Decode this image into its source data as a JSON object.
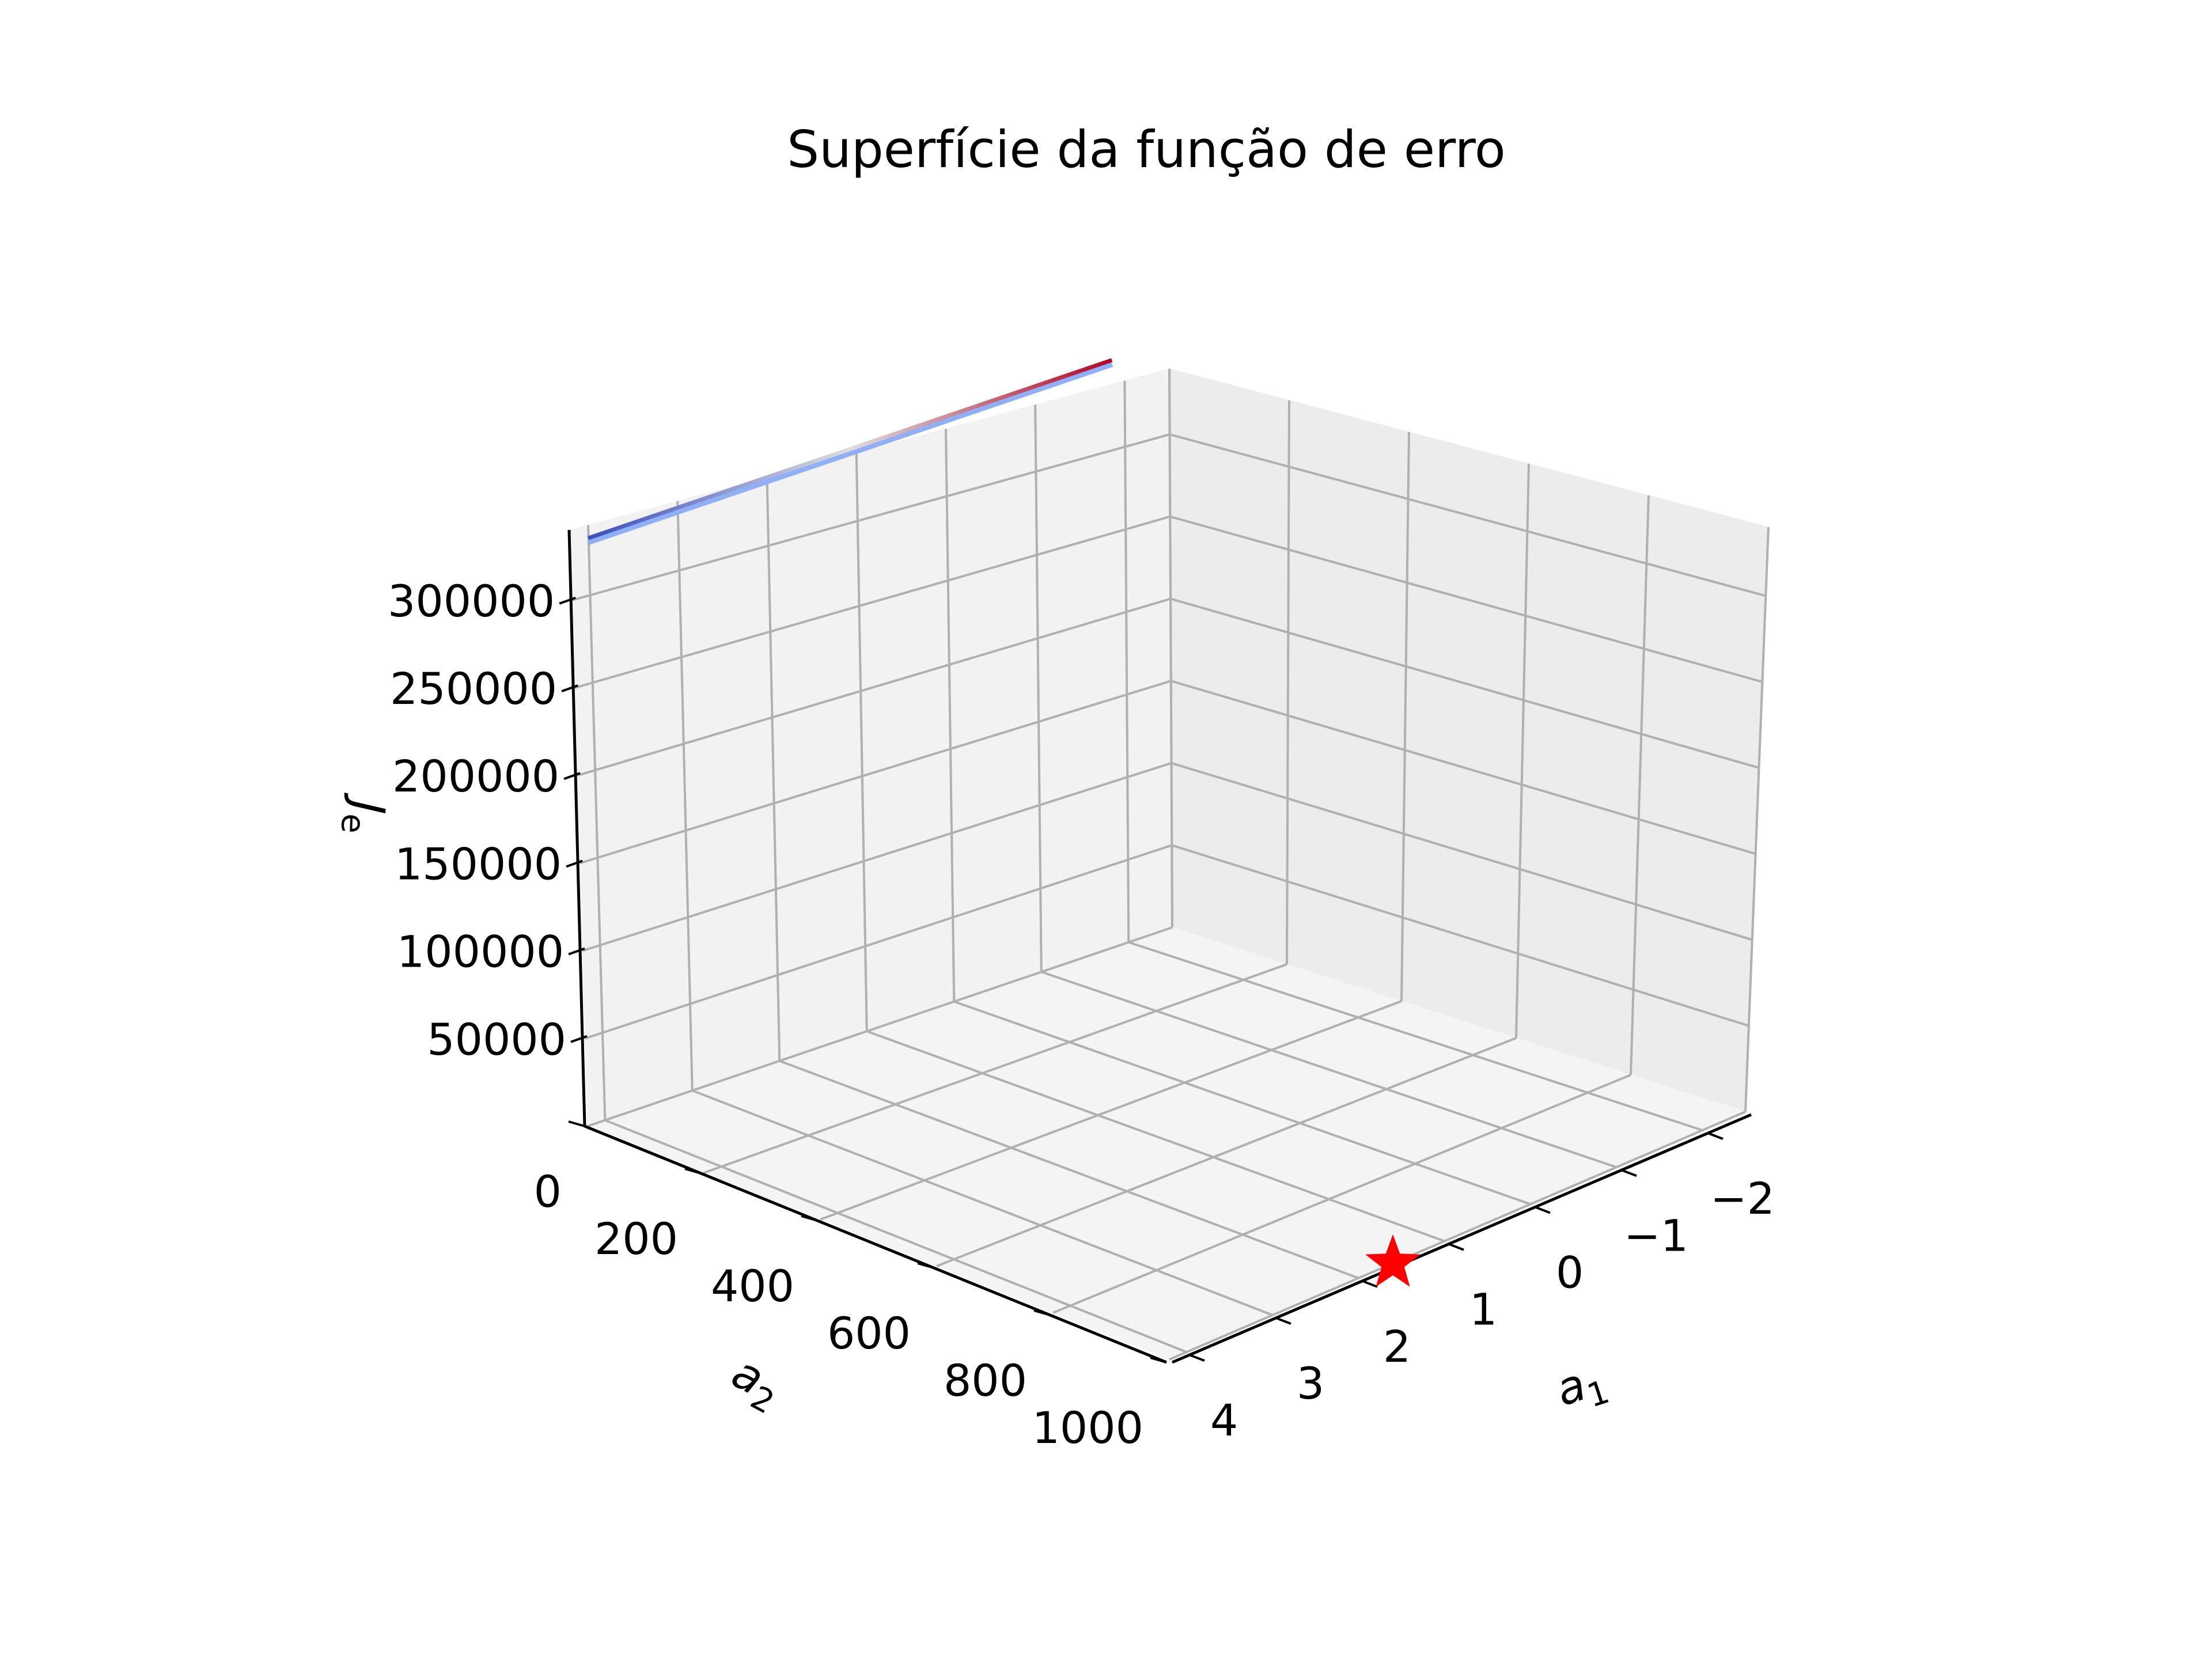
{
  "chart_data": {
    "type": "surface3d",
    "title": "Superfície da função de erro",
    "x_axis": {
      "label": "a",
      "label_sub": "1",
      "ticks": [
        "4",
        "3",
        "2",
        "1",
        "0",
        "−1",
        "−2"
      ],
      "range": [
        -2.5,
        4.2
      ]
    },
    "y_axis": {
      "label": "a",
      "label_sub": "2",
      "ticks": [
        "0",
        "200",
        "400",
        "600",
        "800",
        "1000"
      ],
      "range": [
        0,
        1000
      ]
    },
    "z_axis": {
      "label": "J",
      "label_sub": "e",
      "ticks": [
        "50000",
        "100000",
        "150000",
        "200000",
        "250000",
        "300000"
      ],
      "range": [
        0,
        340000
      ]
    },
    "surface": {
      "description_colormap": "coolwarm",
      "a2_value": 0,
      "a1_from": 4,
      "a1_to": -2,
      "J_from": 330000,
      "J_to": 330000
    },
    "marker": {
      "shape": "star",
      "color": "#ff0000",
      "a1": 1.6,
      "a2": 1000,
      "J": 0
    },
    "grid": true,
    "colors": {
      "pane": "#f2f2f2",
      "grid": "#b0b0b0",
      "cool": "#3b4cc0",
      "warm": "#b40426"
    }
  }
}
